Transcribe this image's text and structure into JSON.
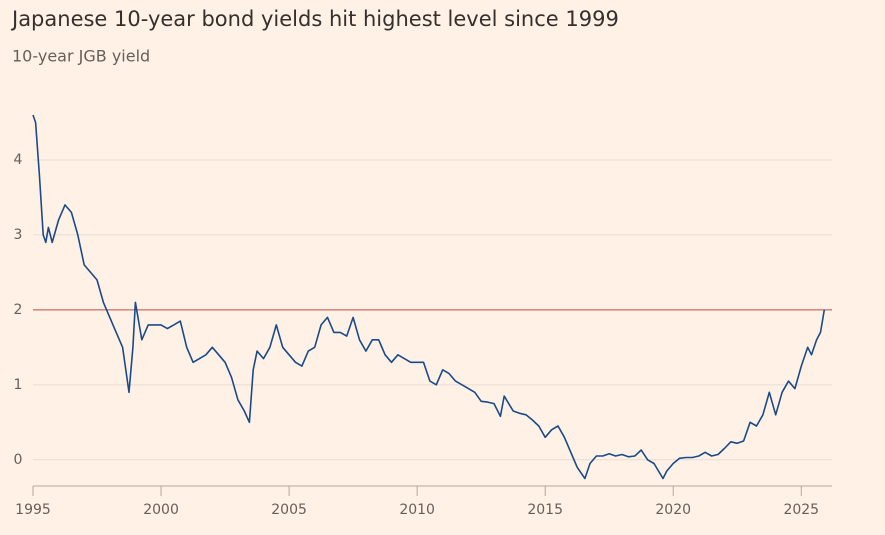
{
  "chart_data": {
    "type": "line",
    "title": "Japanese 10-year bond yields hit highest level since 1999",
    "subtitle": "10-year JGB yield",
    "x": [
      1995.0,
      1995.1,
      1995.25,
      1995.4,
      1995.5,
      1995.6,
      1995.75,
      1996.0,
      1996.25,
      1996.5,
      1996.75,
      1997.0,
      1997.25,
      1997.5,
      1997.75,
      1998.0,
      1998.25,
      1998.5,
      1998.75,
      1998.9,
      1999.0,
      1999.25,
      1999.5,
      1999.75,
      2000.0,
      2000.25,
      2000.5,
      2000.75,
      2001.0,
      2001.25,
      2001.5,
      2001.75,
      2002.0,
      2002.25,
      2002.5,
      2002.75,
      2003.0,
      2003.25,
      2003.45,
      2003.6,
      2003.75,
      2004.0,
      2004.25,
      2004.5,
      2004.75,
      2005.0,
      2005.25,
      2005.5,
      2005.75,
      2006.0,
      2006.25,
      2006.5,
      2006.75,
      2007.0,
      2007.25,
      2007.5,
      2007.75,
      2008.0,
      2008.25,
      2008.5,
      2008.75,
      2009.0,
      2009.25,
      2009.5,
      2009.75,
      2010.0,
      2010.25,
      2010.5,
      2010.75,
      2011.0,
      2011.25,
      2011.5,
      2011.75,
      2012.0,
      2012.25,
      2012.5,
      2012.75,
      2013.0,
      2013.25,
      2013.4,
      2013.75,
      2014.0,
      2014.25,
      2014.5,
      2014.75,
      2015.0,
      2015.25,
      2015.5,
      2015.75,
      2016.0,
      2016.25,
      2016.55,
      2016.75,
      2017.0,
      2017.25,
      2017.5,
      2017.75,
      2018.0,
      2018.25,
      2018.5,
      2018.75,
      2019.0,
      2019.25,
      2019.6,
      2019.75,
      2020.0,
      2020.25,
      2020.5,
      2020.75,
      2021.0,
      2021.25,
      2021.5,
      2021.75,
      2022.0,
      2022.25,
      2022.5,
      2022.75,
      2023.0,
      2023.25,
      2023.5,
      2023.75,
      2024.0,
      2024.25,
      2024.5,
      2024.75,
      2025.0,
      2025.25,
      2025.4,
      2025.6,
      2025.75,
      2025.9
    ],
    "series": [
      {
        "name": "10-year JGB yield",
        "color": "#1a4a8a",
        "values": [
          4.6,
          4.5,
          3.8,
          3.0,
          2.9,
          3.1,
          2.9,
          3.2,
          3.4,
          3.3,
          3.0,
          2.6,
          2.5,
          2.4,
          2.1,
          1.9,
          1.7,
          1.5,
          0.9,
          1.5,
          2.1,
          1.6,
          1.8,
          1.8,
          1.8,
          1.75,
          1.8,
          1.85,
          1.5,
          1.3,
          1.35,
          1.4,
          1.5,
          1.4,
          1.3,
          1.1,
          0.8,
          0.65,
          0.5,
          1.2,
          1.45,
          1.35,
          1.5,
          1.8,
          1.5,
          1.4,
          1.3,
          1.25,
          1.45,
          1.5,
          1.8,
          1.9,
          1.7,
          1.7,
          1.65,
          1.9,
          1.6,
          1.45,
          1.6,
          1.6,
          1.4,
          1.3,
          1.4,
          1.35,
          1.3,
          1.3,
          1.3,
          1.05,
          1.0,
          1.2,
          1.15,
          1.05,
          1.0,
          0.95,
          0.9,
          0.78,
          0.77,
          0.75,
          0.58,
          0.85,
          0.65,
          0.62,
          0.6,
          0.53,
          0.45,
          0.3,
          0.4,
          0.45,
          0.3,
          0.1,
          -0.1,
          -0.25,
          -0.05,
          0.05,
          0.05,
          0.08,
          0.05,
          0.07,
          0.04,
          0.05,
          0.13,
          0.0,
          -0.05,
          -0.25,
          -0.15,
          -0.05,
          0.02,
          0.03,
          0.03,
          0.05,
          0.1,
          0.05,
          0.07,
          0.15,
          0.24,
          0.22,
          0.25,
          0.5,
          0.45,
          0.6,
          0.9,
          0.6,
          0.9,
          1.05,
          0.95,
          1.25,
          1.5,
          1.4,
          1.6,
          1.7,
          2.0
        ]
      }
    ],
    "xlim": [
      1995,
      2026.2
    ],
    "xticks": [
      1995,
      2000,
      2005,
      2010,
      2015,
      2020,
      2025
    ],
    "ylim": [
      -0.35,
      4.7
    ],
    "yticks": [
      0,
      1,
      2,
      3,
      4
    ],
    "grid": true,
    "reference_line": {
      "value": 2,
      "color": "#c0504d"
    }
  }
}
